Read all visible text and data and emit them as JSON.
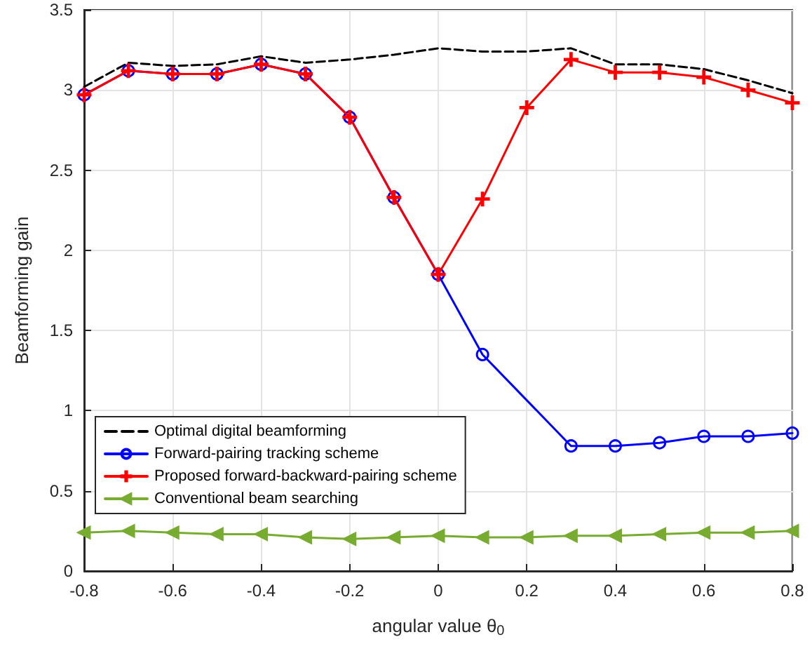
{
  "chart_data": {
    "type": "line",
    "xlabel": "angular value θ$_{0}$",
    "ylabel": "Beamforming gain",
    "x": [
      -0.8,
      -0.7,
      -0.6,
      -0.5,
      -0.4,
      -0.3,
      -0.2,
      -0.1,
      0,
      0.1,
      0.2,
      0.3,
      0.4,
      0.5,
      0.6,
      0.7,
      0.8
    ],
    "xlim": [
      -0.8,
      0.8
    ],
    "xticks": [
      -0.8,
      -0.6,
      -0.4,
      -0.2,
      0,
      0.2,
      0.4,
      0.6,
      0.8
    ],
    "ylim": [
      0,
      3.5
    ],
    "yticks": [
      0,
      0.5,
      1,
      1.5,
      2,
      2.5,
      3,
      3.5
    ],
    "grid": true,
    "legend": "bottom left",
    "series": [
      {
        "name": "Optimal digital beamforming",
        "color": "#000000",
        "line_style": "dashed",
        "marker": "none",
        "values": [
          3.02,
          3.17,
          3.15,
          3.16,
          3.21,
          3.17,
          3.19,
          3.22,
          3.26,
          3.24,
          3.24,
          3.26,
          3.16,
          3.16,
          3.13,
          3.06,
          2.98
        ]
      },
      {
        "name": "Forward-pairing tracking scheme",
        "color": "#0000ff",
        "line_style": "solid",
        "marker": "circle",
        "values": [
          2.97,
          3.12,
          3.1,
          3.1,
          3.16,
          3.1,
          2.83,
          2.33,
          1.85,
          1.35,
          null,
          0.78,
          0.78,
          0.8,
          0.84,
          0.84,
          0.86
        ]
      },
      {
        "name": "Proposed forward-backward-pairing scheme",
        "color": "#ff0000",
        "line_style": "solid",
        "marker": "cross",
        "values": [
          2.97,
          3.12,
          3.1,
          3.1,
          3.16,
          3.1,
          2.83,
          2.33,
          1.85,
          2.32,
          2.89,
          3.19,
          3.11,
          3.11,
          3.08,
          3.0,
          2.92
        ]
      },
      {
        "name": "Conventional beam searching",
        "color": "#77ac30",
        "line_style": "solid",
        "marker": "triangle",
        "values": [
          0.24,
          0.25,
          0.24,
          0.23,
          0.23,
          0.21,
          0.2,
          0.21,
          0.22,
          0.21,
          0.21,
          0.22,
          0.22,
          0.23,
          0.24,
          0.24,
          0.25
        ]
      }
    ]
  }
}
